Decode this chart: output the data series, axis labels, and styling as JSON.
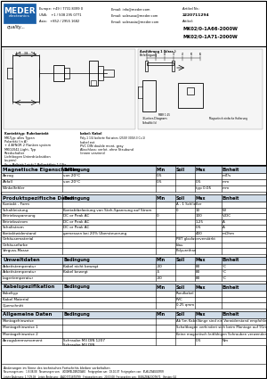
{
  "bg_color": "#ffffff",
  "meder_box_color": "#1a5fa8",
  "meder_text": "MEDER",
  "meder_sub": "electronics",
  "watermark_text": "BZUR",
  "watermark_color": "#b8d4e8",
  "section_headers": [
    "Magnetische Eigenschaften",
    "Produktspezifische Daten",
    "Umweltdaten",
    "Kabelspezifikation",
    "Allgemeine Daten"
  ],
  "col_headers": [
    "Bedingung",
    "Min",
    "Soll",
    "Max",
    "Einheit"
  ],
  "header_info": {
    "line1_left": "Europe: +49 / 7731 8399 0",
    "line1_mid": "Email: info@meder.com",
    "line1_right": "Artikel Nr.:",
    "line2_left": "USA:    +1 / 508 295 0771",
    "line2_mid": "Email: salesusa@meder.com",
    "line2_right": "2220711294",
    "line3_left": "Asia:   +852 / 2955 1682",
    "line3_mid": "Email: salesasia@meder.com",
    "line3_right": "Artikel:",
    "artikel1": "MK02/0-1A66-2000W",
    "artikel2": "MK02/0-1A71-2000W"
  },
  "table_header_color": "#d0dce8",
  "col_header_color": "#e8e8e8",
  "row_bg": "#ffffff",
  "border_color": "#000000",
  "text_color": "#000000",
  "mag_rows": [
    [
      "Anzug",
      "von 20°C",
      "0.5",
      "",
      "",
      "mT/s"
    ],
    [
      "Abfall",
      "von 20°C",
      "0.5",
      "",
      "0.5",
      "mm"
    ],
    [
      "Winkelfehler",
      "",
      "",
      "",
      "typ 0.05",
      "mm"
    ]
  ],
  "prod_rows": [
    [
      "Kontakt - Form",
      "",
      "",
      "A - 1 Schließer",
      "",
      ""
    ],
    [
      "Schaltleistung",
      "Kontaktbelastung von Steh-Spannung auf Strom",
      "",
      "0",
      "10",
      "W"
    ],
    [
      "Betriebsspannung",
      "DC or Peak AC",
      "0",
      "",
      "100",
      "V,DC"
    ],
    [
      "Betriebsstrom",
      "DC or Peak AC",
      "",
      "",
      "1.25",
      "A"
    ],
    [
      "Schaltstrom",
      "DC or Peak AC",
      "",
      "",
      "0.5",
      "A"
    ],
    [
      "Kontaktwiderstand",
      "gemessen bei 20% Übersteuerung",
      "",
      "",
      "400",
      "mOhm"
    ],
    [
      "Gehäusematerial",
      "",
      "",
      "PBT glasfaserverstärkt",
      "",
      ""
    ],
    [
      "Gehäusefarbe",
      "",
      "",
      "blau",
      "",
      ""
    ],
    [
      "Verguss-Masse",
      "",
      "",
      "Polyurethan",
      "",
      ""
    ]
  ],
  "env_rows": [
    [
      "Arbeitstemperatur",
      "Kabel nicht bewegt",
      "-30",
      "",
      "80",
      "°C"
    ],
    [
      "Arbeitstemperatur",
      "Kabel bewegt",
      "-5",
      "",
      "80",
      "°C"
    ],
    [
      "Lagertemperatur",
      "",
      "-30",
      "",
      "80",
      "°C"
    ]
  ],
  "cable_rows": [
    [
      "Kabeltyp",
      "",
      "",
      "Rundkabel",
      "",
      ""
    ],
    [
      "Kabel Material",
      "",
      "",
      "PVC",
      "",
      ""
    ],
    [
      "Querschnitt",
      "",
      "",
      "0.25 qmm",
      "",
      ""
    ]
  ],
  "general_rows": [
    [
      "Montagehinweise",
      "",
      "",
      "Ab 5m Kabellänge sind ein Vorwiderstand empfohlen",
      "",
      ""
    ],
    [
      "Montagehinweise 1",
      "",
      "",
      "Schaltbogen verhindert sich beim Montage auf 91mm",
      "",
      ""
    ],
    [
      "Montagehinweise 2",
      "",
      "",
      "Keine magnetisch leitfähigen Schrauben verwenden",
      "",
      ""
    ],
    [
      "Anzugsbremsmoment",
      "Schraube M3 DIN 1207\nSchraube M3 DIN",
      "",
      "",
      "0.5",
      "Nm"
    ]
  ],
  "footer_lines": [
    "Änderungen im Sinne des technischen Fortschritts bleiben vorbehalten",
    "Neuerungen am:   1.8.08.08   Neuerungen von:   4000MELDERZOA80   Freigegeben am:  08.10.07  Freigegeben von:  BUBLZEAGGOFER",
    "Letzte Änderung: 1.7.09.09   Letzte Änderung:  4A2D7701870799   Freigegeben am:  20.03.08  Freigegeben von:  BUBLZEAGGO7H71   Version: 04"
  ]
}
